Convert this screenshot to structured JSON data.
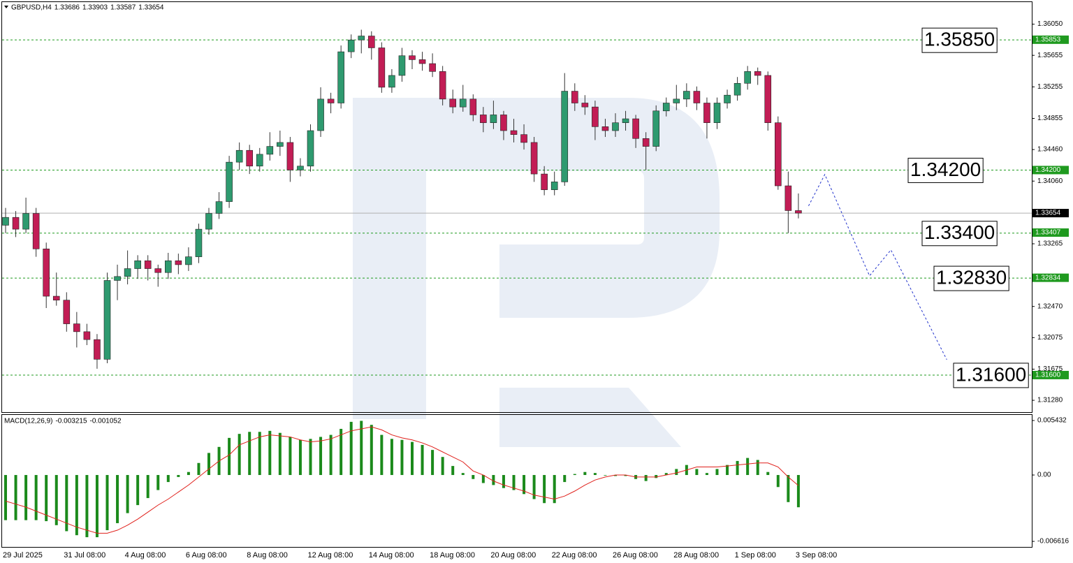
{
  "chart_data": [
    {
      "type": "candlestick",
      "title": "GBPUSD,H4",
      "categories": [
        "29 Jul 2025",
        null,
        null,
        null,
        null,
        null,
        "31 Jul 08:00",
        null,
        null,
        null,
        null,
        null,
        "4 Aug 08:00",
        null,
        null,
        null,
        null,
        null,
        "6 Aug 08:00",
        null,
        null,
        null,
        null,
        null,
        "8 Aug 08:00",
        null,
        null,
        null,
        null,
        null,
        "12 Aug 08:00",
        null,
        null,
        null,
        null,
        null,
        "14 Aug 08:00",
        null,
        null,
        null,
        null,
        null,
        "18 Aug 08:00",
        null,
        null,
        null,
        null,
        null,
        "20 Aug 08:00",
        null,
        null,
        null,
        null,
        null,
        "22 Aug 08:00",
        null,
        null,
        null,
        null,
        null,
        "26 Aug 08:00",
        null,
        null,
        null,
        null,
        null,
        "28 Aug 08:00",
        null,
        null,
        null,
        null,
        null,
        "1 Sep 08:00",
        null,
        null,
        null,
        null,
        null,
        "3 Sep 08:00"
      ],
      "open": [
        1.335,
        1.336,
        1.3345,
        1.3365,
        1.332,
        1.326,
        1.3255,
        1.3225,
        1.3215,
        1.3205,
        1.318,
        1.328,
        1.3285,
        1.3295,
        1.3305,
        1.3295,
        1.329,
        1.3305,
        1.33,
        1.331,
        1.3345,
        1.3365,
        1.338,
        1.343,
        1.3445,
        1.3425,
        1.344,
        1.345,
        1.3455,
        1.342,
        1.3425,
        1.347,
        1.351,
        1.3505,
        1.357,
        1.3585,
        1.359,
        1.3575,
        1.3525,
        1.354,
        1.3565,
        1.356,
        1.3555,
        1.3545,
        1.351,
        1.35,
        1.351,
        1.349,
        1.348,
        1.349,
        1.347,
        1.3465,
        1.3455,
        1.3415,
        1.3395,
        1.3405,
        1.352,
        1.3505,
        1.35,
        1.3475,
        1.347,
        1.348,
        1.3485,
        1.346,
        1.345,
        1.3495,
        1.3505,
        1.351,
        1.352,
        1.3505,
        1.348,
        1.3505,
        1.3515,
        1.353,
        1.3545,
        1.354,
        1.348,
        1.34,
        1.33686
      ],
      "high": [
        1.3372,
        1.3368,
        1.3385,
        1.3372,
        1.3328,
        1.329,
        1.3265,
        1.324,
        1.3225,
        1.3212,
        1.329,
        1.33,
        1.3318,
        1.3312,
        1.3312,
        1.33,
        1.3315,
        1.3314,
        1.3322,
        1.3352,
        1.3372,
        1.3392,
        1.3438,
        1.3455,
        1.3452,
        1.3448,
        1.3468,
        1.347,
        1.3462,
        1.3435,
        1.3478,
        1.3525,
        1.3518,
        1.3578,
        1.3592,
        1.3598,
        1.3596,
        1.3582,
        1.3548,
        1.3575,
        1.3572,
        1.357,
        1.3568,
        1.3552,
        1.3522,
        1.3528,
        1.3516,
        1.35,
        1.3508,
        1.3495,
        1.3485,
        1.3478,
        1.3462,
        1.3425,
        1.3418,
        1.3543,
        1.353,
        1.3515,
        1.3508,
        1.3485,
        1.3492,
        1.3495,
        1.349,
        1.3468,
        1.3502,
        1.3512,
        1.3528,
        1.353,
        1.3526,
        1.3512,
        1.3512,
        1.3522,
        1.3538,
        1.3552,
        1.355,
        1.3545,
        1.3488,
        1.3418,
        1.33903
      ],
      "low": [
        1.334,
        1.3335,
        1.334,
        1.331,
        1.3245,
        1.3248,
        1.3215,
        1.3195,
        1.3198,
        1.3168,
        1.3175,
        1.3255,
        1.3275,
        1.3282,
        1.328,
        1.3272,
        1.3282,
        1.3288,
        1.3292,
        1.3302,
        1.3338,
        1.3358,
        1.3372,
        1.342,
        1.3415,
        1.3418,
        1.3432,
        1.3438,
        1.3405,
        1.3412,
        1.3418,
        1.3462,
        1.3492,
        1.3498,
        1.3562,
        1.3568,
        1.356,
        1.3518,
        1.3518,
        1.3532,
        1.3548,
        1.3546,
        1.3538,
        1.3502,
        1.3492,
        1.3494,
        1.3482,
        1.3468,
        1.3472,
        1.3458,
        1.3455,
        1.3446,
        1.3405,
        1.3388,
        1.3388,
        1.34,
        1.3495,
        1.349,
        1.3458,
        1.3462,
        1.3462,
        1.347,
        1.3448,
        1.342,
        1.3444,
        1.3488,
        1.3496,
        1.35,
        1.3496,
        1.346,
        1.3472,
        1.3498,
        1.3508,
        1.3522,
        1.3528,
        1.347,
        1.3395,
        1.334,
        1.33587
      ],
      "close": [
        1.336,
        1.3345,
        1.3365,
        1.332,
        1.326,
        1.3255,
        1.3225,
        1.3215,
        1.3205,
        1.318,
        1.328,
        1.3285,
        1.3295,
        1.3305,
        1.3295,
        1.329,
        1.3305,
        1.33,
        1.331,
        1.3345,
        1.3365,
        1.338,
        1.343,
        1.3445,
        1.3425,
        1.344,
        1.345,
        1.3455,
        1.342,
        1.3425,
        1.347,
        1.351,
        1.3505,
        1.357,
        1.3585,
        1.359,
        1.3575,
        1.3525,
        1.354,
        1.3565,
        1.356,
        1.3555,
        1.3545,
        1.351,
        1.35,
        1.351,
        1.349,
        1.348,
        1.349,
        1.347,
        1.3465,
        1.3455,
        1.3415,
        1.3395,
        1.3405,
        1.352,
        1.3505,
        1.35,
        1.3475,
        1.347,
        1.348,
        1.3485,
        1.346,
        1.345,
        1.3495,
        1.3505,
        1.351,
        1.352,
        1.3505,
        1.348,
        1.3505,
        1.3515,
        1.353,
        1.3545,
        1.354,
        1.348,
        1.34,
        1.33686,
        1.33654
      ],
      "up_color": "#2e9a6f",
      "down_color": "#c21d55",
      "ylim": [
        1.3113,
        1.3633
      ],
      "yticks": [
        {
          "value": 1.3605,
          "label": "1.36050"
        },
        1.35655,
        1.35255,
        1.34855,
        {
          "value": 1.3446,
          "label": "1.34460"
        },
        {
          "value": 1.3406,
          "label": "1.34060"
        },
        1.33265,
        {
          "value": 1.3247,
          "label": "1.32470"
        },
        1.32075,
        1.31675,
        {
          "value": 1.3128,
          "label": "1.31280"
        }
      ],
      "levels": [
        {
          "value": 1.3585,
          "label": "1.35850",
          "tag": 1.35853
        },
        {
          "value": 1.342,
          "label": "1.34200",
          "tag": {
            "value": 1.342,
            "label": "1.34200"
          }
        },
        {
          "value": 1.334,
          "label": "1.33400",
          "tag": 1.33407
        },
        {
          "value": 1.3283,
          "label": "1.32830",
          "tag": 1.32834
        },
        {
          "value": 1.316,
          "label": "1.31600",
          "tag": {
            "value": 1.316,
            "label": "1.31600"
          }
        }
      ],
      "level_color": "#1f9a1f",
      "forecast": {
        "x": [
          79,
          80.6,
          85,
          87.1,
          92.6
        ],
        "values": [
          1.33745,
          1.34144,
          1.32859,
          1.33187,
          1.31795
        ],
        "color": "#2233cc"
      }
    },
    {
      "type": "macd",
      "title": "MACD(12,26,9)",
      "series": [
        {
          "color": "#1b8a1b",
          "values": [
            -0.0045,
            -0.0045,
            -0.0045,
            -0.0045,
            -0.0046,
            -0.005,
            -0.0056,
            -0.006,
            -0.0062,
            -0.0062,
            -0.0055,
            -0.0048,
            -0.0038,
            -0.003,
            -0.0023,
            -0.0015,
            -0.0007,
            -0.0002,
            0.0003,
            0.0012,
            0.0022,
            0.0028,
            0.0037,
            0.0041,
            0.0043,
            0.0043,
            0.0044,
            0.0042,
            0.0038,
            0.0035,
            0.0036,
            0.0038,
            0.004,
            0.0046,
            0.0053,
            0.0054,
            0.005,
            0.004,
            0.0036,
            0.0035,
            0.0033,
            0.003,
            0.0025,
            0.0018,
            0.0009,
            0.0002,
            -0.0004,
            -0.0008,
            -0.001,
            -0.0013,
            -0.0015,
            -0.0019,
            -0.0024,
            -0.0028,
            -0.0028,
            -0.0007,
            0.0001,
            0.0003,
            0.0002,
            0,
            -0.0001,
            -0.0001,
            -0.0004,
            -0.0006,
            -0.0003,
            0.0002,
            0.0006,
            0.001,
            0.0006,
            0.0002,
            0.0006,
            0.001,
            0.0014,
            0.0017,
            0.0015,
            0.0003,
            -0.0012,
            -0.0027,
            -0.003215
          ]
        },
        {
          "color": "#e0201b",
          "values": [
            -0.0026,
            -0.0029,
            -0.0032,
            -0.0036,
            -0.004,
            -0.0044,
            -0.0048,
            -0.0052,
            -0.0055,
            -0.0058,
            -0.0058,
            -0.0055,
            -0.005,
            -0.0044,
            -0.0037,
            -0.003,
            -0.0024,
            -0.0017,
            -0.001,
            -0.0002,
            0.0006,
            0.0014,
            0.002,
            0.003,
            0.0034,
            0.0038,
            0.004,
            0.0039,
            0.0038,
            0.0035,
            0.0033,
            0.0034,
            0.0036,
            0.004,
            0.0044,
            0.0046,
            0.0048,
            0.0045,
            0.004,
            0.0037,
            0.0035,
            0.0032,
            0.0028,
            0.0023,
            0.0018,
            0.0013,
            0.0004,
            0,
            -0.0006,
            -0.001,
            -0.0013,
            -0.0016,
            -0.002,
            -0.0022,
            -0.0024,
            -0.0021,
            -0.0016,
            -0.001,
            -0.0005,
            -0.0002,
            0,
            0,
            -0.0002,
            -0.0002,
            -0.0002,
            0,
            0.0002,
            0.0005,
            0.0008,
            0.0008,
            0.0008,
            0.0009,
            0.001,
            0.0011,
            0.0012,
            0.0012,
            0.0008,
            -0.0002,
            -0.001052
          ]
        }
      ],
      "ylim": [
        -0.00717,
        0.00599
      ],
      "yticks": [
        0.005432,
        {
          "value": 0,
          "label": "0.00"
        },
        -0.006616
      ]
    }
  ]
}
